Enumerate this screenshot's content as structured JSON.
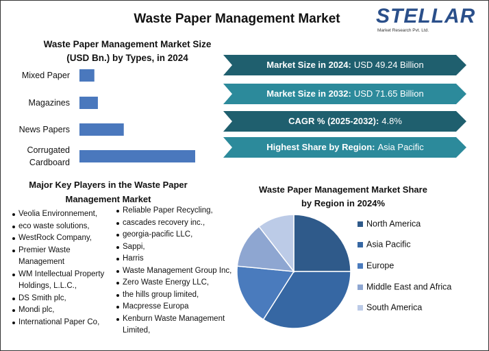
{
  "title": "Waste Paper Management Market",
  "logo": {
    "name": "STELLAR",
    "tagline": "Market Research Pvt. Ltd."
  },
  "stats": [
    {
      "label": "Market Size in 2024:",
      "value": "USD 49.24 Billion"
    },
    {
      "label": "Market Size in 2032:",
      "value": "USD 71.65 Billion"
    },
    {
      "label": "CAGR % (2025-2032):",
      "value": "4.8%"
    },
    {
      "label": "Highest Share by Region:",
      "value": "Asia Pacific"
    }
  ],
  "key_players": {
    "title": "Major Key Players in the Waste Paper Management Market",
    "column1": [
      "Veolia Environnement,",
      "eco waste solutions,",
      "WestRock Company,",
      "Premier Waste Management",
      "WM Intellectual Property Holdings, L.L.C.,",
      "DS Smith plc,",
      "Mondi plc,",
      "International Paper Co,"
    ],
    "column2": [
      "Reliable Paper Recycling,",
      "cascades recovery inc.,",
      "georgia-pacific LLC,",
      "Sappi,",
      "Harris",
      "Waste Management Group Inc,",
      "Zero Waste Energy LLC,",
      "the hills group limited,",
      "Macpresse Europa",
      "Kenburn Waste Management Limited,"
    ]
  },
  "chart_data": [
    {
      "type": "bar",
      "orientation": "horizontal",
      "title": "Waste Paper Management Market Size (USD Bn.) by Types, in 2024",
      "categories": [
        "Mixed Paper",
        "Magazines",
        "News Papers",
        "Corrugated Cardboard"
      ],
      "values": [
        3.8,
        4.7,
        11.3,
        29.5
      ],
      "color": "#4a78bd"
    },
    {
      "type": "pie",
      "title": "Waste Paper Management Market Share by Region in 2024%",
      "categories": [
        "North America",
        "Asia Pacific",
        "Europe",
        "Middle East and Africa",
        "South America"
      ],
      "values": [
        25,
        34,
        17.5,
        13,
        10.5
      ],
      "colors": [
        "#2f5a8a",
        "#3667a3",
        "#4a7bbd",
        "#8ea6d1",
        "#bccbe7"
      ]
    }
  ]
}
